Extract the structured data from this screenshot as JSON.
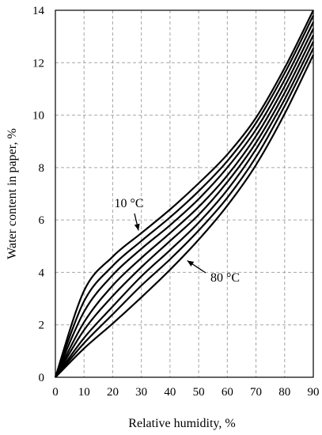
{
  "chart_data": {
    "type": "line",
    "title": "",
    "xlabel": "Relative humidity, %",
    "ylabel": "Water content in paper, %",
    "xlim": [
      0,
      90
    ],
    "ylim": [
      0,
      14
    ],
    "xticks": [
      "0",
      "10",
      "20",
      "30",
      "40",
      "50",
      "60",
      "70",
      "80",
      "90"
    ],
    "yticks": [
      "0",
      "2",
      "4",
      "6",
      "8",
      "10",
      "12",
      "14"
    ],
    "grid": true,
    "legend": "none",
    "x": [
      0,
      10,
      20,
      30,
      40,
      50,
      60,
      70,
      80,
      90
    ],
    "series": [
      {
        "values": [
          0,
          3.3,
          4.6,
          5.5,
          6.4,
          7.4,
          8.5,
          9.9,
          11.8,
          14.0
        ]
      },
      {
        "values": [
          0,
          2.9,
          4.25,
          5.2,
          6.1,
          7.1,
          8.25,
          9.7,
          11.6,
          13.8
        ]
      },
      {
        "values": [
          0,
          2.5,
          3.9,
          4.9,
          5.8,
          6.8,
          8.0,
          9.45,
          11.35,
          13.55
        ]
      },
      {
        "values": [
          0,
          2.1,
          3.5,
          4.55,
          5.5,
          6.5,
          7.7,
          9.2,
          11.1,
          13.3
        ]
      },
      {
        "values": [
          0,
          1.8,
          3.1,
          4.2,
          5.2,
          6.2,
          7.45,
          8.95,
          10.85,
          13.05
        ]
      },
      {
        "values": [
          0,
          1.5,
          2.7,
          3.85,
          4.85,
          5.9,
          7.15,
          8.7,
          10.6,
          12.8
        ]
      },
      {
        "values": [
          0,
          1.3,
          2.4,
          3.5,
          4.5,
          5.6,
          6.85,
          8.4,
          10.35,
          12.55
        ]
      },
      {
        "values": [
          0,
          1.1,
          2.05,
          3.05,
          4.1,
          5.25,
          6.55,
          8.1,
          10.05,
          12.3
        ]
      }
    ],
    "annotations": [
      {
        "text": "10 °C",
        "arrow_to": [
          29,
          5.6
        ]
      },
      {
        "text": "80 °C",
        "arrow_to": [
          46,
          4.45
        ]
      }
    ]
  }
}
